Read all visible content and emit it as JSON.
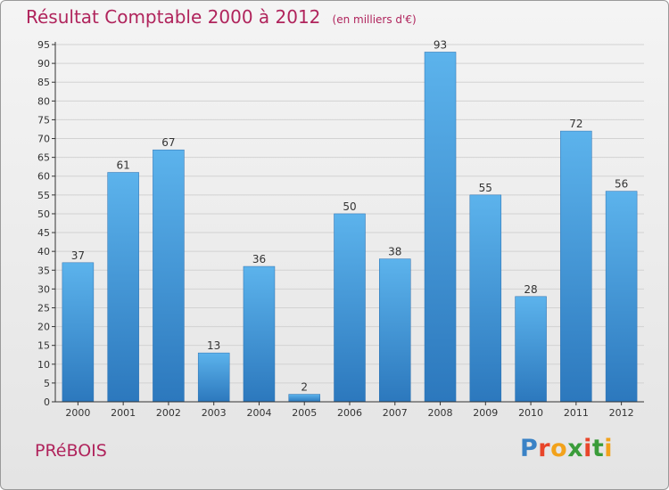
{
  "chart_data": {
    "type": "bar",
    "title": "Résultat Comptable 2000 à 2012",
    "subtitle": "(en milliers d'€)",
    "categories": [
      "2000",
      "2001",
      "2002",
      "2003",
      "2004",
      "2005",
      "2006",
      "2007",
      "2008",
      "2009",
      "2010",
      "2011",
      "2012"
    ],
    "values": [
      37,
      61,
      67,
      13,
      36,
      2,
      50,
      38,
      93,
      55,
      28,
      72,
      56
    ],
    "xlabel": "",
    "ylabel": "",
    "ylim": [
      0,
      95
    ],
    "ytick_step": 5,
    "grid": true,
    "bar_color": "#3a8fd6"
  },
  "footer": {
    "town": "PRéBOIS",
    "logo": "Proxiti",
    "logo_colors": [
      "#3a82c6",
      "#e8452a",
      "#f2a21b",
      "#3a9c3a",
      "#e8452a",
      "#3a9c3a",
      "#f2a21b"
    ]
  },
  "colors": {
    "title": "#b0245c",
    "axis": "#333333",
    "grid": "#d2d2d2"
  }
}
